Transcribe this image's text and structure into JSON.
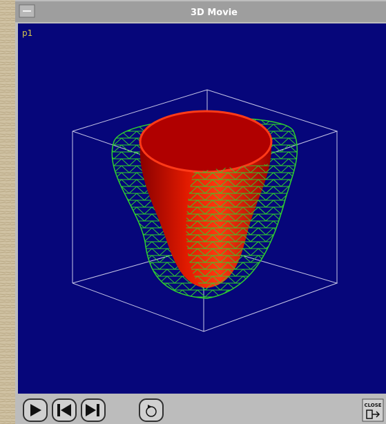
{
  "window": {
    "title": "3D Movie"
  },
  "viewport": {
    "label": "p1"
  },
  "toolbar": {
    "close_label": "CLOSE"
  }
}
